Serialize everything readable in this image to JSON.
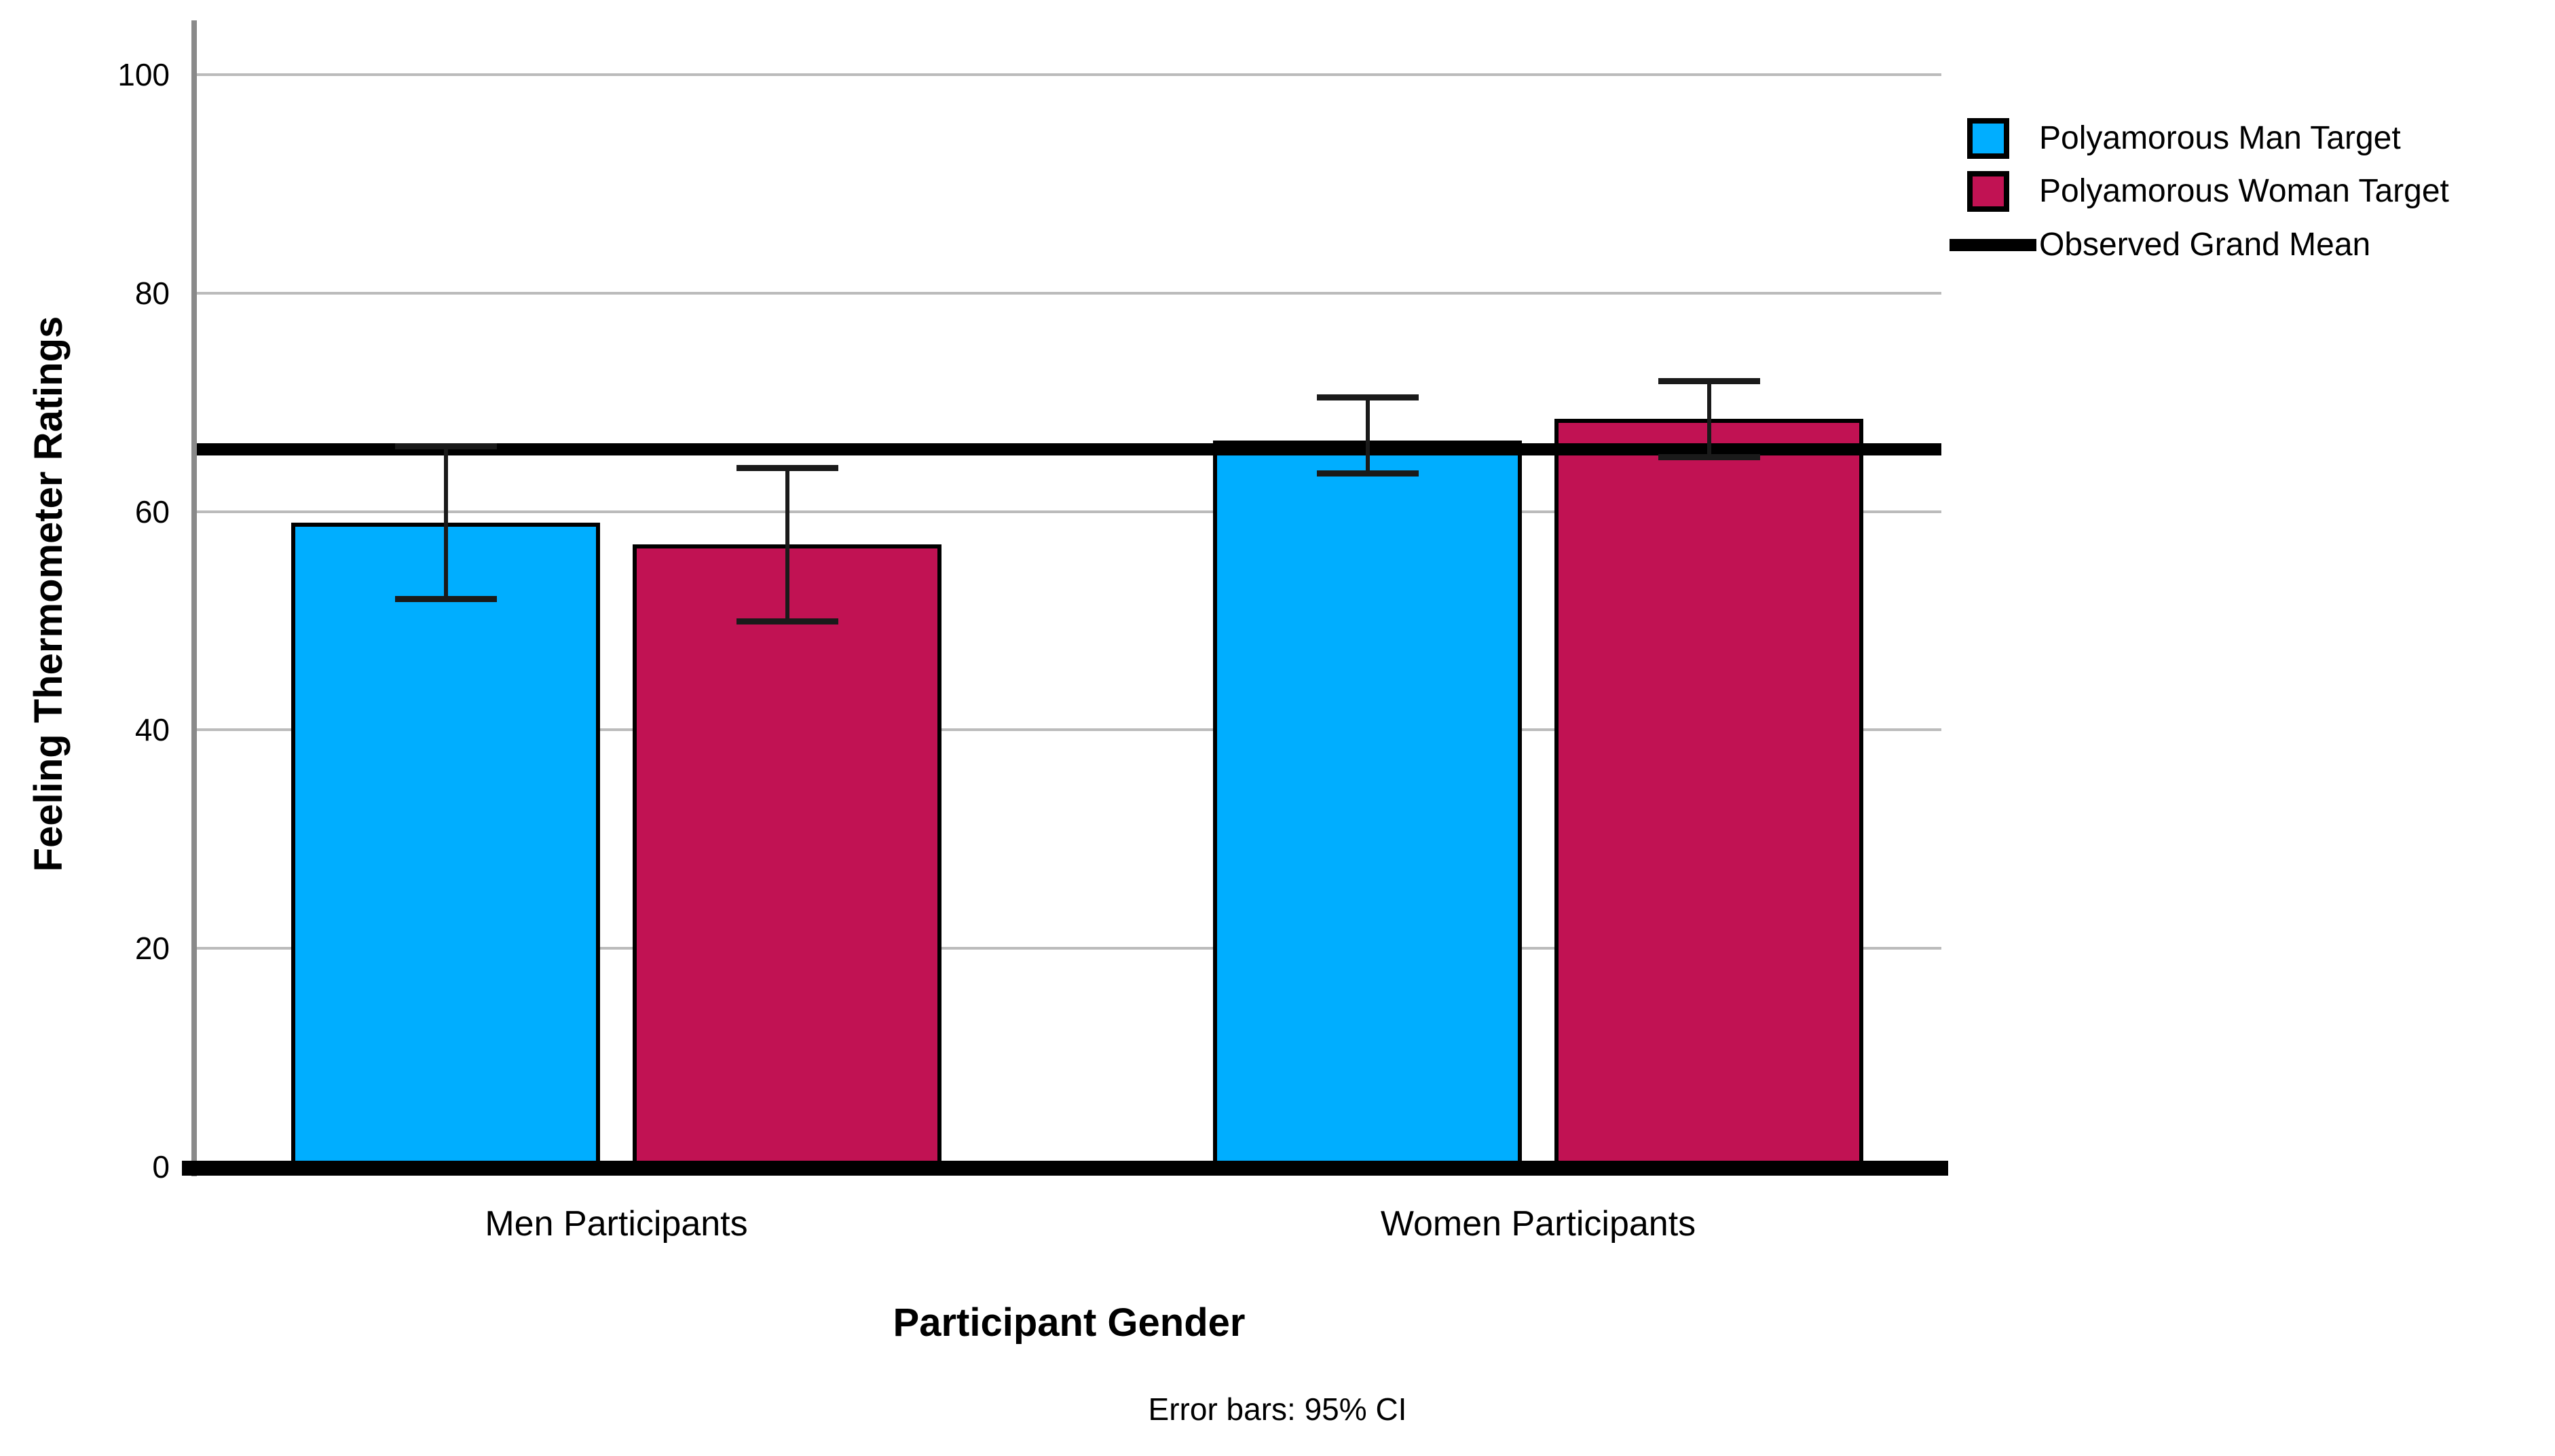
{
  "figure": {
    "footnote": "Error bars: 95% CI"
  },
  "chart_data": {
    "type": "bar",
    "title": "",
    "xlabel": "Participant Gender",
    "ylabel": "Feeling Thermometer Ratings",
    "categories": [
      "Men Participants",
      "Women Participants"
    ],
    "series": [
      {
        "name": "Polyamorous Man Target",
        "color": "#00AEFF",
        "values": [
          59,
          66.5
        ],
        "ci_low": [
          52,
          63.5
        ],
        "ci_high": [
          66,
          70.5
        ]
      },
      {
        "name": "Polyamorous Woman Target",
        "color": "#C11253",
        "values": [
          57,
          68.5
        ],
        "ci_low": [
          50,
          65
        ],
        "ci_high": [
          64,
          72
        ]
      }
    ],
    "grand_mean": {
      "label": "Observed Grand Mean",
      "value": 65.7,
      "color": "#000000"
    },
    "yticks": [
      0,
      20,
      40,
      60,
      80,
      100
    ],
    "ylim": [
      0,
      105
    ],
    "grid": true,
    "legend_position": "top-right",
    "error_note": "Error bars: 95% CI"
  }
}
